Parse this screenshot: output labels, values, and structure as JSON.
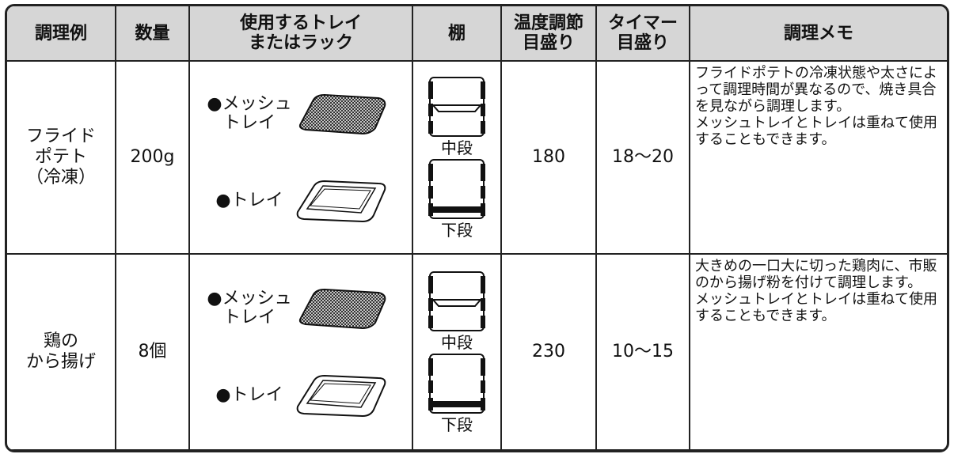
{
  "table": {
    "header": [
      "調理例",
      "数量",
      "使用するトレイ\nまたはラック",
      "棚",
      "温度調節\n目盛り",
      "タイマー\n目盛り",
      "調理メモ"
    ],
    "rows": [
      {
        "dish": "フライド\nポテト\n（冷凍）",
        "amount": "200g",
        "trays": [
          "●メッシュ\nトレイ",
          "●トレイ"
        ],
        "shelves": [
          "中段",
          "下段"
        ],
        "temperature": "180",
        "timer": "18〜20",
        "memo": "フライドポテトの冷凍状態や太さによって調理時間が異なるので、焼き具合を見ながら調理します。\nメッシュトレイとトレイは重ねて使用することもできます。"
      },
      {
        "dish": "鶏の\nから揚げ",
        "amount": "8個",
        "trays": [
          "●メッシュ\nトレイ",
          "●トレイ"
        ],
        "shelves": [
          "中段",
          "下段"
        ],
        "temperature": "230",
        "timer": "10〜15",
        "memo": "大きめの一口大に切った鶏肉に、市販のから揚げ粉を付けて調理します。\nメッシュトレイとトレイは重ねて使用することもできます。"
      }
    ]
  }
}
